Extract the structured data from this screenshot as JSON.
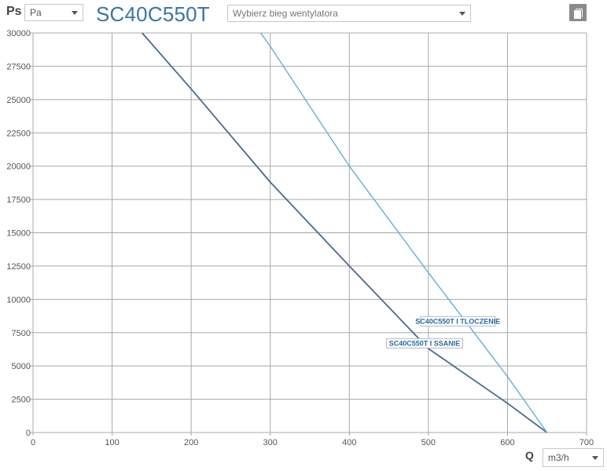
{
  "header": {
    "y_axis_symbol": "Ps",
    "y_unit": "Pa",
    "title": "SC40C550T",
    "fan_speed_placeholder": "Wybierz bieg wentylatora"
  },
  "footer": {
    "x_axis_symbol": "Q",
    "x_unit": "m3/h"
  },
  "colors": {
    "title": "#3a74a8",
    "series_dark": "#4b6a8f",
    "series_light": "#5fb0de",
    "grid": "#a8a8a8"
  },
  "icons": {
    "copy": "copy-icon"
  },
  "chart_data": {
    "type": "line",
    "title": "SC40C550T",
    "xlabel": "Q",
    "ylabel": "Ps",
    "xlim": [
      0,
      700
    ],
    "ylim": [
      0,
      30000
    ],
    "xticks": [
      0,
      100,
      200,
      300,
      400,
      500,
      600,
      700
    ],
    "yticks": [
      0,
      2500,
      5000,
      7500,
      10000,
      12500,
      15000,
      17500,
      20000,
      22500,
      25000,
      27500,
      30000
    ],
    "grid": true,
    "series": [
      {
        "name": "SC40C550T I SSANIE",
        "color": "#4b6a8f",
        "x": [
          138,
          200,
          300,
          400,
          500,
          600,
          650
        ],
        "y": [
          30000,
          25800,
          18800,
          12500,
          6300,
          2200,
          0
        ]
      },
      {
        "name": "SC40C550T I TLOCZENIE",
        "color": "#5fb0de",
        "x": [
          288,
          300,
          400,
          500,
          600,
          650
        ],
        "y": [
          30000,
          29000,
          20000,
          12000,
          4200,
          0
        ]
      }
    ]
  }
}
